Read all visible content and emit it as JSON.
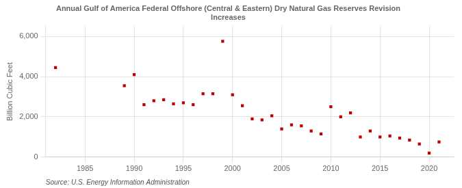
{
  "chart_data": {
    "type": "scatter",
    "title": "Annual Gulf of America Federal Offshore (Central & Eastern) Dry Natural Gas Reserves Revision\nIncreases",
    "y_label": "Billion Cubic Feet",
    "annotations": [
      "Source: U.S. Energy Information Administration"
    ],
    "x": [
      1982,
      1989,
      1990,
      1991,
      1992,
      1993,
      1994,
      1995,
      1996,
      1997,
      1998,
      1999,
      2000,
      2001,
      2002,
      2003,
      2004,
      2005,
      2006,
      2007,
      2008,
      2009,
      2010,
      2011,
      2012,
      2013,
      2014,
      2015,
      2016,
      2017,
      2018,
      2019,
      2020,
      2021
    ],
    "values": [
      4450,
      3550,
      4100,
      2600,
      2800,
      2850,
      2650,
      2700,
      2600,
      3150,
      3150,
      5750,
      3100,
      2550,
      1900,
      1850,
      2050,
      1400,
      1600,
      1550,
      1300,
      1150,
      2500,
      2000,
      2200,
      1000,
      1300,
      1000,
      1050,
      950,
      850,
      650,
      200,
      750
    ],
    "color": "#c00000",
    "marker": "square",
    "xlim": [
      1981,
      2022.5
    ],
    "xticks": [
      1985,
      1990,
      1995,
      2000,
      2005,
      2010,
      2015,
      2020
    ],
    "ylim": [
      0,
      6500
    ],
    "yticks": [
      0,
      {
        "value": 2000,
        "label": "2,000"
      },
      {
        "value": 4000,
        "label": "4,000"
      },
      {
        "value": 6000,
        "label": "6,000"
      }
    ],
    "grid": true
  }
}
